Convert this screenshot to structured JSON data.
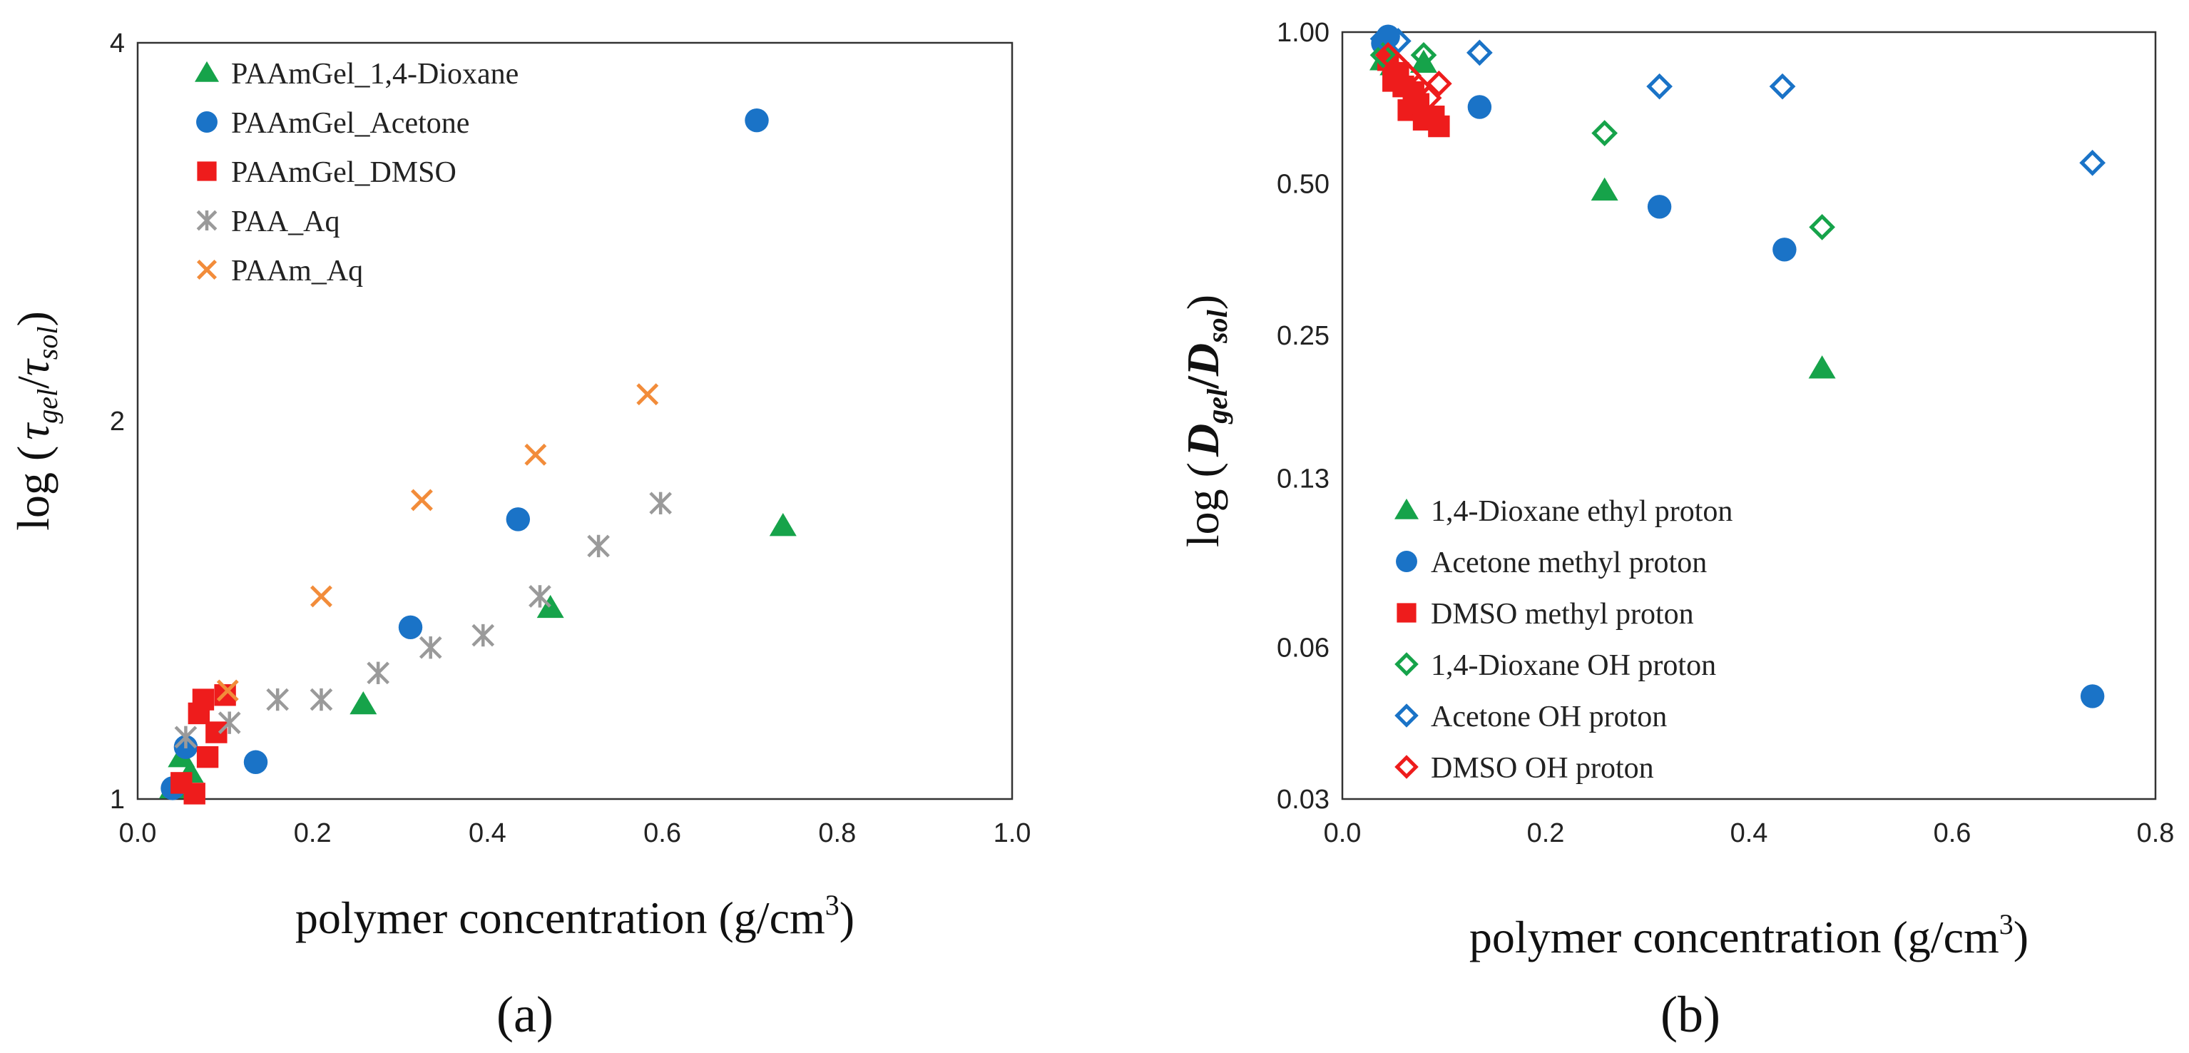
{
  "colors": {
    "dioxane": "#16a34a",
    "acetone": "#1a73c7",
    "dmso": "#ee1c1c",
    "paa": "#9a9a9a",
    "paam": "#f28c3a"
  },
  "chart_data": [
    {
      "panel": "(a)",
      "type": "scatter",
      "xlabel": "polymer concentration (g/cm",
      "xlabel_sup": "3",
      "xlabel_close": ")",
      "ylabel": "log ( τgel/τsol)",
      "ylabel_parts": {
        "open": "log (",
        "tau1": "τ",
        "sub1": "gel",
        "slash": "/",
        "tau2": "τ",
        "sub2": "sol",
        "close": ")"
      },
      "xlim": [
        0.0,
        1.0
      ],
      "ylim": [
        1,
        4
      ],
      "y_scale": "log",
      "x_ticks": [
        "0.0",
        "0.2",
        "0.4",
        "0.6",
        "0.8",
        "1.0"
      ],
      "x_tick_values": [
        0.0,
        0.2,
        0.4,
        0.6,
        0.8,
        1.0
      ],
      "y_ticks": [
        "1",
        "2",
        "4"
      ],
      "y_tick_values": [
        1,
        2,
        4
      ],
      "legend_position": "top-left",
      "series": [
        {
          "name": "PAAmGel_1,4-Dioxane",
          "marker": "triangle",
          "color": "#16a34a",
          "x": [
            0.04,
            0.05,
            0.06,
            0.258,
            0.472,
            0.738
          ],
          "y": [
            1.02,
            1.08,
            1.05,
            1.19,
            1.42,
            1.65
          ]
        },
        {
          "name": "PAAmGel_Acetone",
          "marker": "circle",
          "color": "#1a73c7",
          "x": [
            0.04,
            0.055,
            0.135,
            0.312,
            0.435,
            0.708
          ],
          "y": [
            1.02,
            1.1,
            1.07,
            1.37,
            1.67,
            3.47
          ]
        },
        {
          "name": "PAAmGel_DMSO",
          "marker": "square",
          "color": "#ee1c1c",
          "x": [
            0.05,
            0.065,
            0.07,
            0.075,
            0.08,
            0.09,
            0.1
          ],
          "y": [
            1.03,
            1.01,
            1.17,
            1.2,
            1.08,
            1.13,
            1.21
          ]
        },
        {
          "name": "PAA_Aq",
          "marker": "asterisk",
          "color": "#9a9a9a",
          "x": [
            0.055,
            0.105,
            0.16,
            0.21,
            0.275,
            0.335,
            0.395,
            0.46,
            0.527,
            0.598
          ],
          "y": [
            1.12,
            1.15,
            1.2,
            1.2,
            1.26,
            1.32,
            1.35,
            1.45,
            1.59,
            1.72
          ]
        },
        {
          "name": "PAAm_Aq",
          "marker": "x",
          "color": "#f28c3a",
          "x": [
            0.103,
            0.21,
            0.325,
            0.455,
            0.583
          ],
          "y": [
            1.22,
            1.45,
            1.73,
            1.88,
            2.1
          ]
        }
      ]
    },
    {
      "panel": "(b)",
      "type": "scatter",
      "xlabel": "polymer concentration (g/cm",
      "xlabel_sup": "3",
      "xlabel_close": ")",
      "ylabel": "log (Dgel/Dsol)",
      "ylabel_parts": {
        "open": "log (",
        "d1": "D",
        "sub1": "gel",
        "slash": "/",
        "d2": "D",
        "sub2": "sol",
        "close": ")"
      },
      "xlim": [
        0.0,
        0.8
      ],
      "ylim": [
        0.03,
        1.0
      ],
      "y_scale": "log",
      "x_ticks": [
        "0.0",
        "0.2",
        "0.4",
        "0.6",
        "0.8"
      ],
      "x_tick_values": [
        0.0,
        0.2,
        0.4,
        0.6,
        0.8
      ],
      "y_ticks": [
        "0.03",
        "0.06",
        "0.13",
        "0.25",
        "0.50",
        "1.00"
      ],
      "y_tick_values": [
        0.03,
        0.06,
        0.13,
        0.25,
        0.5,
        1.0
      ],
      "legend_position": "bottom-left",
      "series": [
        {
          "name": "1,4-Dioxane ethyl proton",
          "marker": "triangle",
          "color": "#16a34a",
          "filled": true,
          "x": [
            0.04,
            0.05,
            0.08,
            0.258,
            0.472
          ],
          "y": [
            0.88,
            0.86,
            0.87,
            0.485,
            0.215
          ]
        },
        {
          "name": "Acetone methyl proton",
          "marker": "circle",
          "color": "#1a73c7",
          "filled": true,
          "x": [
            0.04,
            0.045,
            0.135,
            0.312,
            0.435,
            0.738
          ],
          "y": [
            0.95,
            0.98,
            0.71,
            0.45,
            0.37,
            0.048
          ]
        },
        {
          "name": "DMSO methyl proton",
          "marker": "square",
          "color": "#ee1c1c",
          "filled": true,
          "x": [
            0.045,
            0.05,
            0.055,
            0.06,
            0.065,
            0.07,
            0.075,
            0.08,
            0.09,
            0.095
          ],
          "y": [
            0.88,
            0.8,
            0.83,
            0.78,
            0.7,
            0.76,
            0.72,
            0.67,
            0.68,
            0.65
          ]
        },
        {
          "name": "1,4-Dioxane OH proton",
          "marker": "diamond",
          "color": "#16a34a",
          "filled": false,
          "x": [
            0.04,
            0.08,
            0.258,
            0.472
          ],
          "y": [
            0.9,
            0.9,
            0.63,
            0.41
          ]
        },
        {
          "name": "Acetone OH proton",
          "marker": "diamond",
          "color": "#1a73c7",
          "filled": false,
          "x": [
            0.04,
            0.055,
            0.135,
            0.312,
            0.433,
            0.738
          ],
          "y": [
            0.97,
            0.96,
            0.91,
            0.78,
            0.78,
            0.55
          ]
        },
        {
          "name": "DMSO OH proton",
          "marker": "diamond",
          "color": "#ee1c1c",
          "filled": false,
          "x": [
            0.045,
            0.055,
            0.065,
            0.075,
            0.085,
            0.095
          ],
          "y": [
            0.9,
            0.86,
            0.82,
            0.78,
            0.74,
            0.79
          ]
        }
      ]
    }
  ]
}
